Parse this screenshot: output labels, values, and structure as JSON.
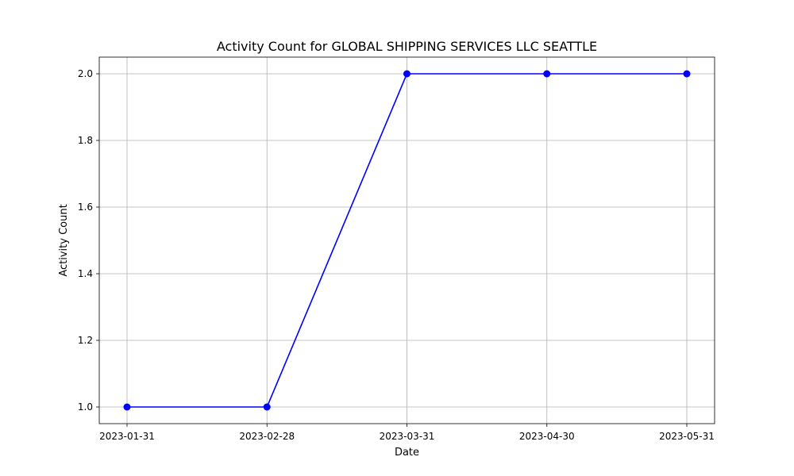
{
  "chart_data": {
    "type": "line",
    "title": "Activity Count for GLOBAL SHIPPING SERVICES LLC SEATTLE",
    "xlabel": "Date",
    "ylabel": "Activity Count",
    "x": [
      "2023-01-31",
      "2023-02-28",
      "2023-03-31",
      "2023-04-30",
      "2023-05-31"
    ],
    "values": [
      1,
      1,
      2,
      2,
      2
    ],
    "ylim": [
      0.95,
      2.05
    ],
    "yticks": [
      "1.0",
      "1.2",
      "1.4",
      "1.6",
      "1.8",
      "2.0"
    ],
    "grid": true,
    "line_color": "#0000ff",
    "marker": "circle"
  }
}
